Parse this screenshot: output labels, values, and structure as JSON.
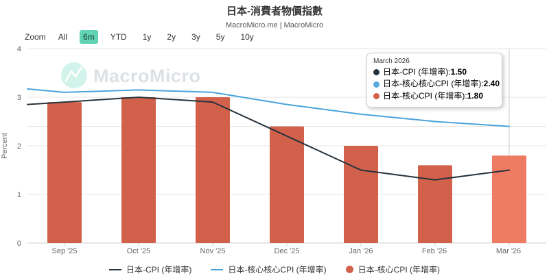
{
  "header": {
    "title": "日本-消費者物價指數",
    "subtitle": "MacroMicro.me | MacroMicro"
  },
  "zoom_bar": {
    "label": "Zoom",
    "options": [
      {
        "label": "All",
        "active": false
      },
      {
        "label": "6m",
        "active": true
      },
      {
        "label": "YTD",
        "active": false
      },
      {
        "label": "1y",
        "active": false
      },
      {
        "label": "2y",
        "active": false
      },
      {
        "label": "3y",
        "active": false
      },
      {
        "label": "5y",
        "active": false
      },
      {
        "label": "10y",
        "active": false
      }
    ],
    "active_color": "#5fd3b3"
  },
  "watermark": {
    "text": "MacroMicro",
    "logo_icon": "macromicro-mountain-logo",
    "logo_color": "#5fd3b3",
    "text_color": "#dde1e5"
  },
  "tooltip": {
    "header": "March 2026",
    "rows": [
      {
        "label": "日本-CPI (年增率): ",
        "value": "1.50",
        "color": "#26323c"
      },
      {
        "label": "日本-核心核心CPI (年增率): ",
        "value": "2.40",
        "color": "#58a9dc"
      },
      {
        "label": "日本-核心CPI (年增率): ",
        "value": "1.80",
        "color": "#d2614b"
      }
    ]
  },
  "legend": [
    {
      "label": "日本-CPI (年增率)",
      "swatch": "line",
      "color": "#26323c"
    },
    {
      "label": "日本-核心核心CPI (年增率)",
      "swatch": "line",
      "color": "#4aa3da"
    },
    {
      "label": "日本-核心CPI (年增率)",
      "swatch": "circle",
      "color": "#d2614b"
    }
  ],
  "chart_data": {
    "type": "mixed",
    "title": "日本-消費者物價指數",
    "categories": [
      "Sep '25",
      "Oct '25",
      "Nov '25",
      "Dec '25",
      "Jan '26",
      "Feb '26",
      "Mar '26"
    ],
    "xlabel": "",
    "ylabel": "Percent",
    "ylim": [
      0,
      4
    ],
    "y_ticks": [
      4,
      3,
      2,
      1,
      0
    ],
    "grid": true,
    "legend_position": "bottom",
    "series": [
      {
        "name": "日本-CPI (年增率)",
        "type": "line",
        "color": "#26323c",
        "values": [
          2.9,
          3.0,
          2.9,
          2.2,
          1.5,
          1.3,
          1.5
        ],
        "edge_start": 2.85
      },
      {
        "name": "日本-核心核心CPI (年增率)",
        "type": "line",
        "color": "#4aa3da",
        "values": [
          3.1,
          3.15,
          3.1,
          2.85,
          2.65,
          2.5,
          2.4
        ],
        "edge_start": 3.17
      },
      {
        "name": "日本-核心CPI (年增率)",
        "type": "bar",
        "color": "#d2614b",
        "hover_color": "#ee7c63",
        "hover_index": 6,
        "values": [
          2.9,
          3.0,
          3.0,
          2.4,
          2.0,
          1.6,
          1.8
        ]
      }
    ],
    "crosshair": {
      "x_index": 6,
      "y_value": 2.4
    },
    "grid_color": "#e6e6e6",
    "axis_color": "#cfd0d2"
  }
}
